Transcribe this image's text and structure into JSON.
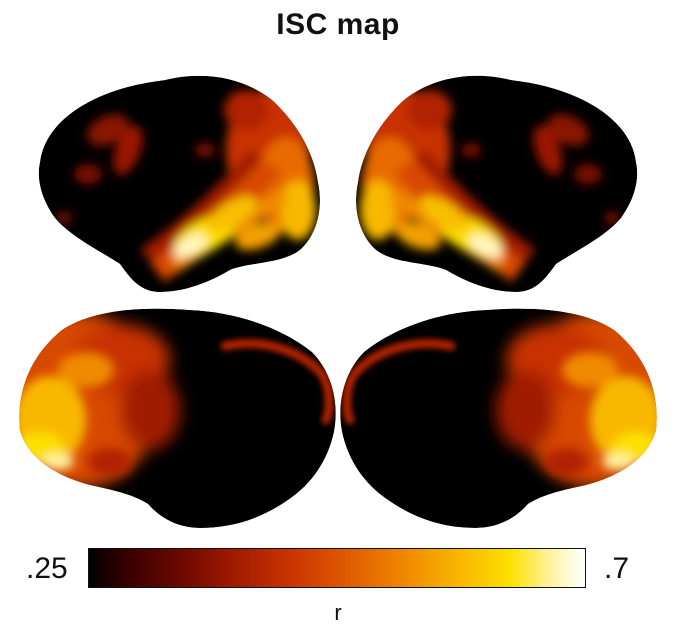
{
  "figure": {
    "title": "ISC map",
    "views": [
      {
        "hemisphere": "left",
        "view": "lateral"
      },
      {
        "hemisphere": "right",
        "view": "lateral"
      },
      {
        "hemisphere": "left",
        "view": "medial"
      },
      {
        "hemisphere": "right",
        "view": "medial"
      }
    ]
  },
  "colorbar": {
    "min_label": ".25",
    "max_label": ".7",
    "axis_label": "r",
    "colormap": [
      "#000000",
      "#6a0800",
      "#c83200",
      "#f08a00",
      "#fde000",
      "#ffffff"
    ]
  }
}
